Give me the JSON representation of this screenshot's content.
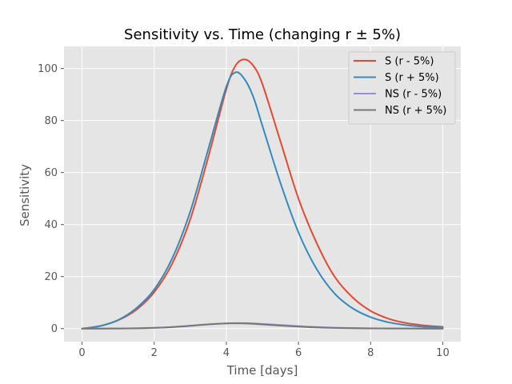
{
  "chart_data": {
    "type": "line",
    "title": "Sensitivity vs. Time (changing r ± 5%)",
    "xlabel": "Time [days]",
    "ylabel": "Sensitivity",
    "xlim": [
      -0.5,
      10.5
    ],
    "ylim": [
      -5,
      108.5
    ],
    "xticks": [
      0,
      2,
      4,
      6,
      8,
      10
    ],
    "yticks": [
      0,
      20,
      40,
      60,
      80,
      100
    ],
    "grid": true,
    "legend_position": "top-right",
    "x": [
      0,
      0.5,
      1,
      1.5,
      2,
      2.5,
      3,
      3.5,
      4,
      4.25,
      4.5,
      4.75,
      5,
      5.5,
      6,
      6.5,
      7,
      7.5,
      8,
      8.5,
      9,
      9.5,
      10
    ],
    "series": [
      {
        "name": "S (r - 5%)",
        "color": "#E24A33",
        "values": [
          0,
          1.0,
          3.2,
          7.2,
          14,
          25,
          42,
          66,
          92,
          101,
          103.5,
          101,
          94,
          72,
          50,
          33,
          20,
          12,
          6.8,
          3.8,
          2.1,
          1.2,
          0.7
        ]
      },
      {
        "name": "S (r + 5%)",
        "color": "#348ABD",
        "values": [
          0,
          1.0,
          3.3,
          7.8,
          15,
          27,
          45,
          69,
          93,
          98.5,
          96,
          89,
          78,
          56,
          37,
          23,
          13.5,
          7.8,
          4.4,
          2.4,
          1.3,
          0.7,
          0.4
        ]
      },
      {
        "name": "NS (r - 5%)",
        "color": "#988ED5",
        "values": [
          0,
          0.01,
          0.03,
          0.1,
          0.25,
          0.55,
          1.0,
          1.6,
          2.0,
          2.1,
          2.1,
          2.0,
          1.8,
          1.4,
          0.95,
          0.6,
          0.36,
          0.21,
          0.12,
          0.07,
          0.04,
          0.02,
          0.01
        ]
      },
      {
        "name": "NS (r + 5%)",
        "color": "#777777",
        "values": [
          0,
          0.01,
          0.04,
          0.12,
          0.3,
          0.62,
          1.1,
          1.65,
          2.0,
          2.05,
          2.0,
          1.85,
          1.6,
          1.15,
          0.75,
          0.45,
          0.27,
          0.15,
          0.09,
          0.05,
          0.03,
          0.015,
          0.01
        ]
      }
    ]
  }
}
